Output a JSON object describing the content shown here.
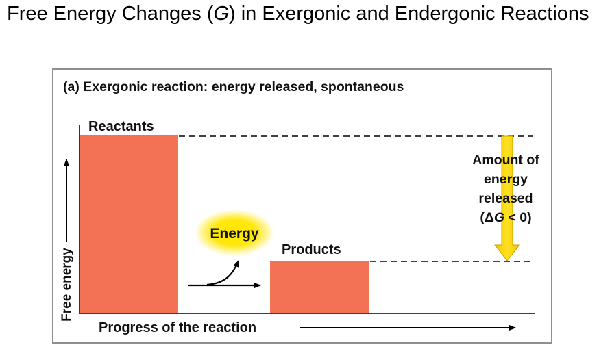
{
  "slide": {
    "title_before": "Free Energy Changes (",
    "title_symbol": "G",
    "title_after": ") in Exergonic and Endergonic Reactions"
  },
  "diagram": {
    "panel_title": "(a) Exergonic reaction: energy released, spontaneous",
    "y_axis_label": "Free energy",
    "x_axis_label": "Progress of the reaction",
    "reactants_label": "Reactants",
    "products_label": "Products",
    "energy_label": "Energy",
    "released_line1": "Amount of",
    "released_line2": "energy",
    "released_line3": "released",
    "delta_open": "(Δ",
    "delta_symbol": "G",
    "delta_close": " < 0)",
    "colors": {
      "bar": "#f37155",
      "glow": "#ffe600",
      "arrow": "#f7d117",
      "frame": "#8f8f8f"
    }
  }
}
